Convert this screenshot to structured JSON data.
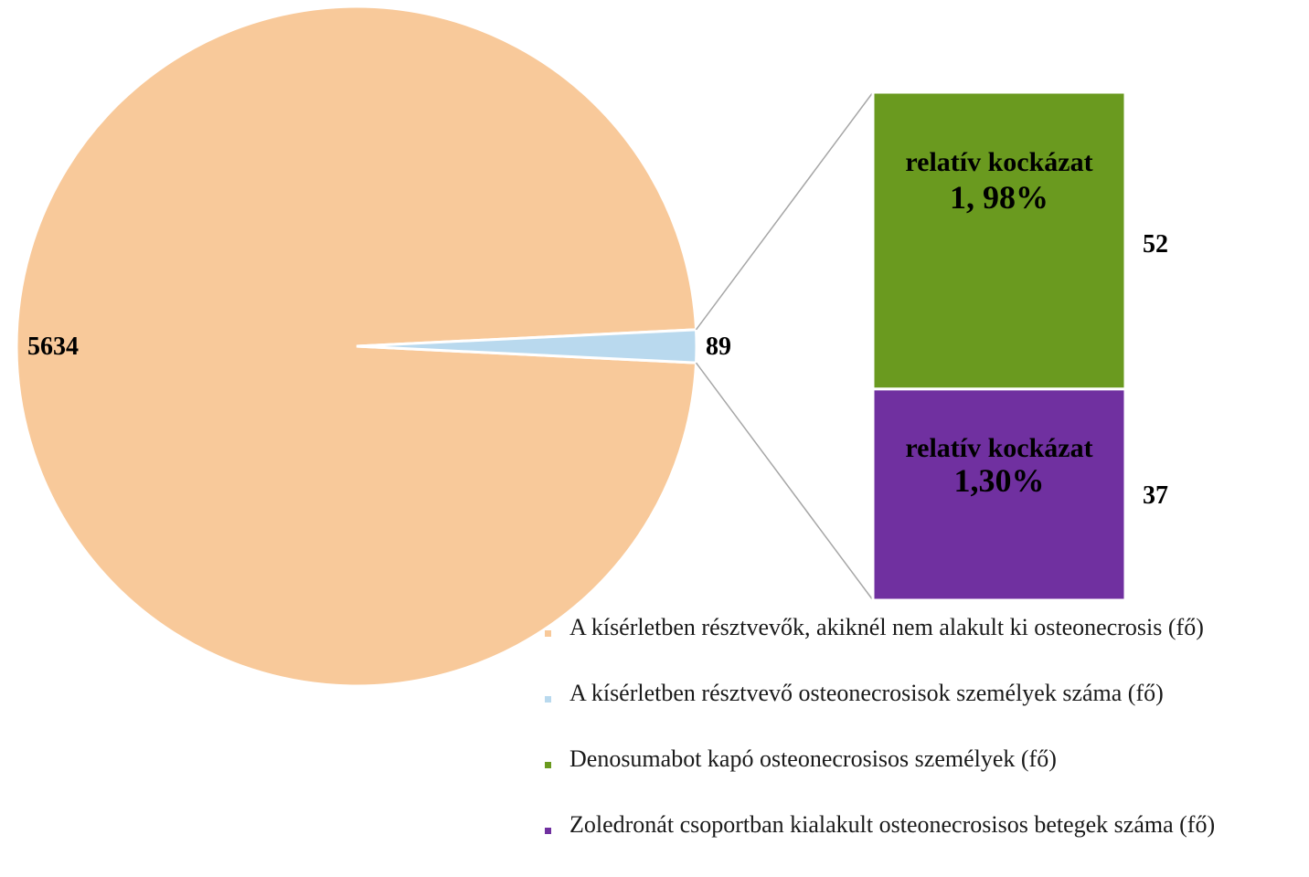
{
  "chart_data": {
    "type": "bar-of-pie",
    "pie": {
      "slices": [
        {
          "label": "A kísérletben résztvevők, akiknél nem alakult ki osteonecrosis (fő)",
          "value": 5634,
          "value_label": "5634",
          "color": "#F8C99A"
        },
        {
          "label": "A kísérletben résztvevő osteonecrosisok személyek száma (fő)",
          "value": 89,
          "value_label": "89",
          "color": "#B9D9EE"
        }
      ]
    },
    "bar": {
      "segments": [
        {
          "label": "Denosumabot kapó osteonecrosisos személyek (fő)",
          "value": 52,
          "value_label": "52",
          "color": "#6A9A1F",
          "inner_line1": "relatív kockázat",
          "inner_line2": "1, 98%"
        },
        {
          "label": "Zoledronát csoportban kialakult osteonecrosisos betegek száma (fő)",
          "value": 37,
          "value_label": "37",
          "color": "#7030A0",
          "inner_line1": "relatív kockázat",
          "inner_line2": "1,30%"
        }
      ]
    },
    "connector_color": "#A6A6A6",
    "legend_position": "bottom-right"
  }
}
